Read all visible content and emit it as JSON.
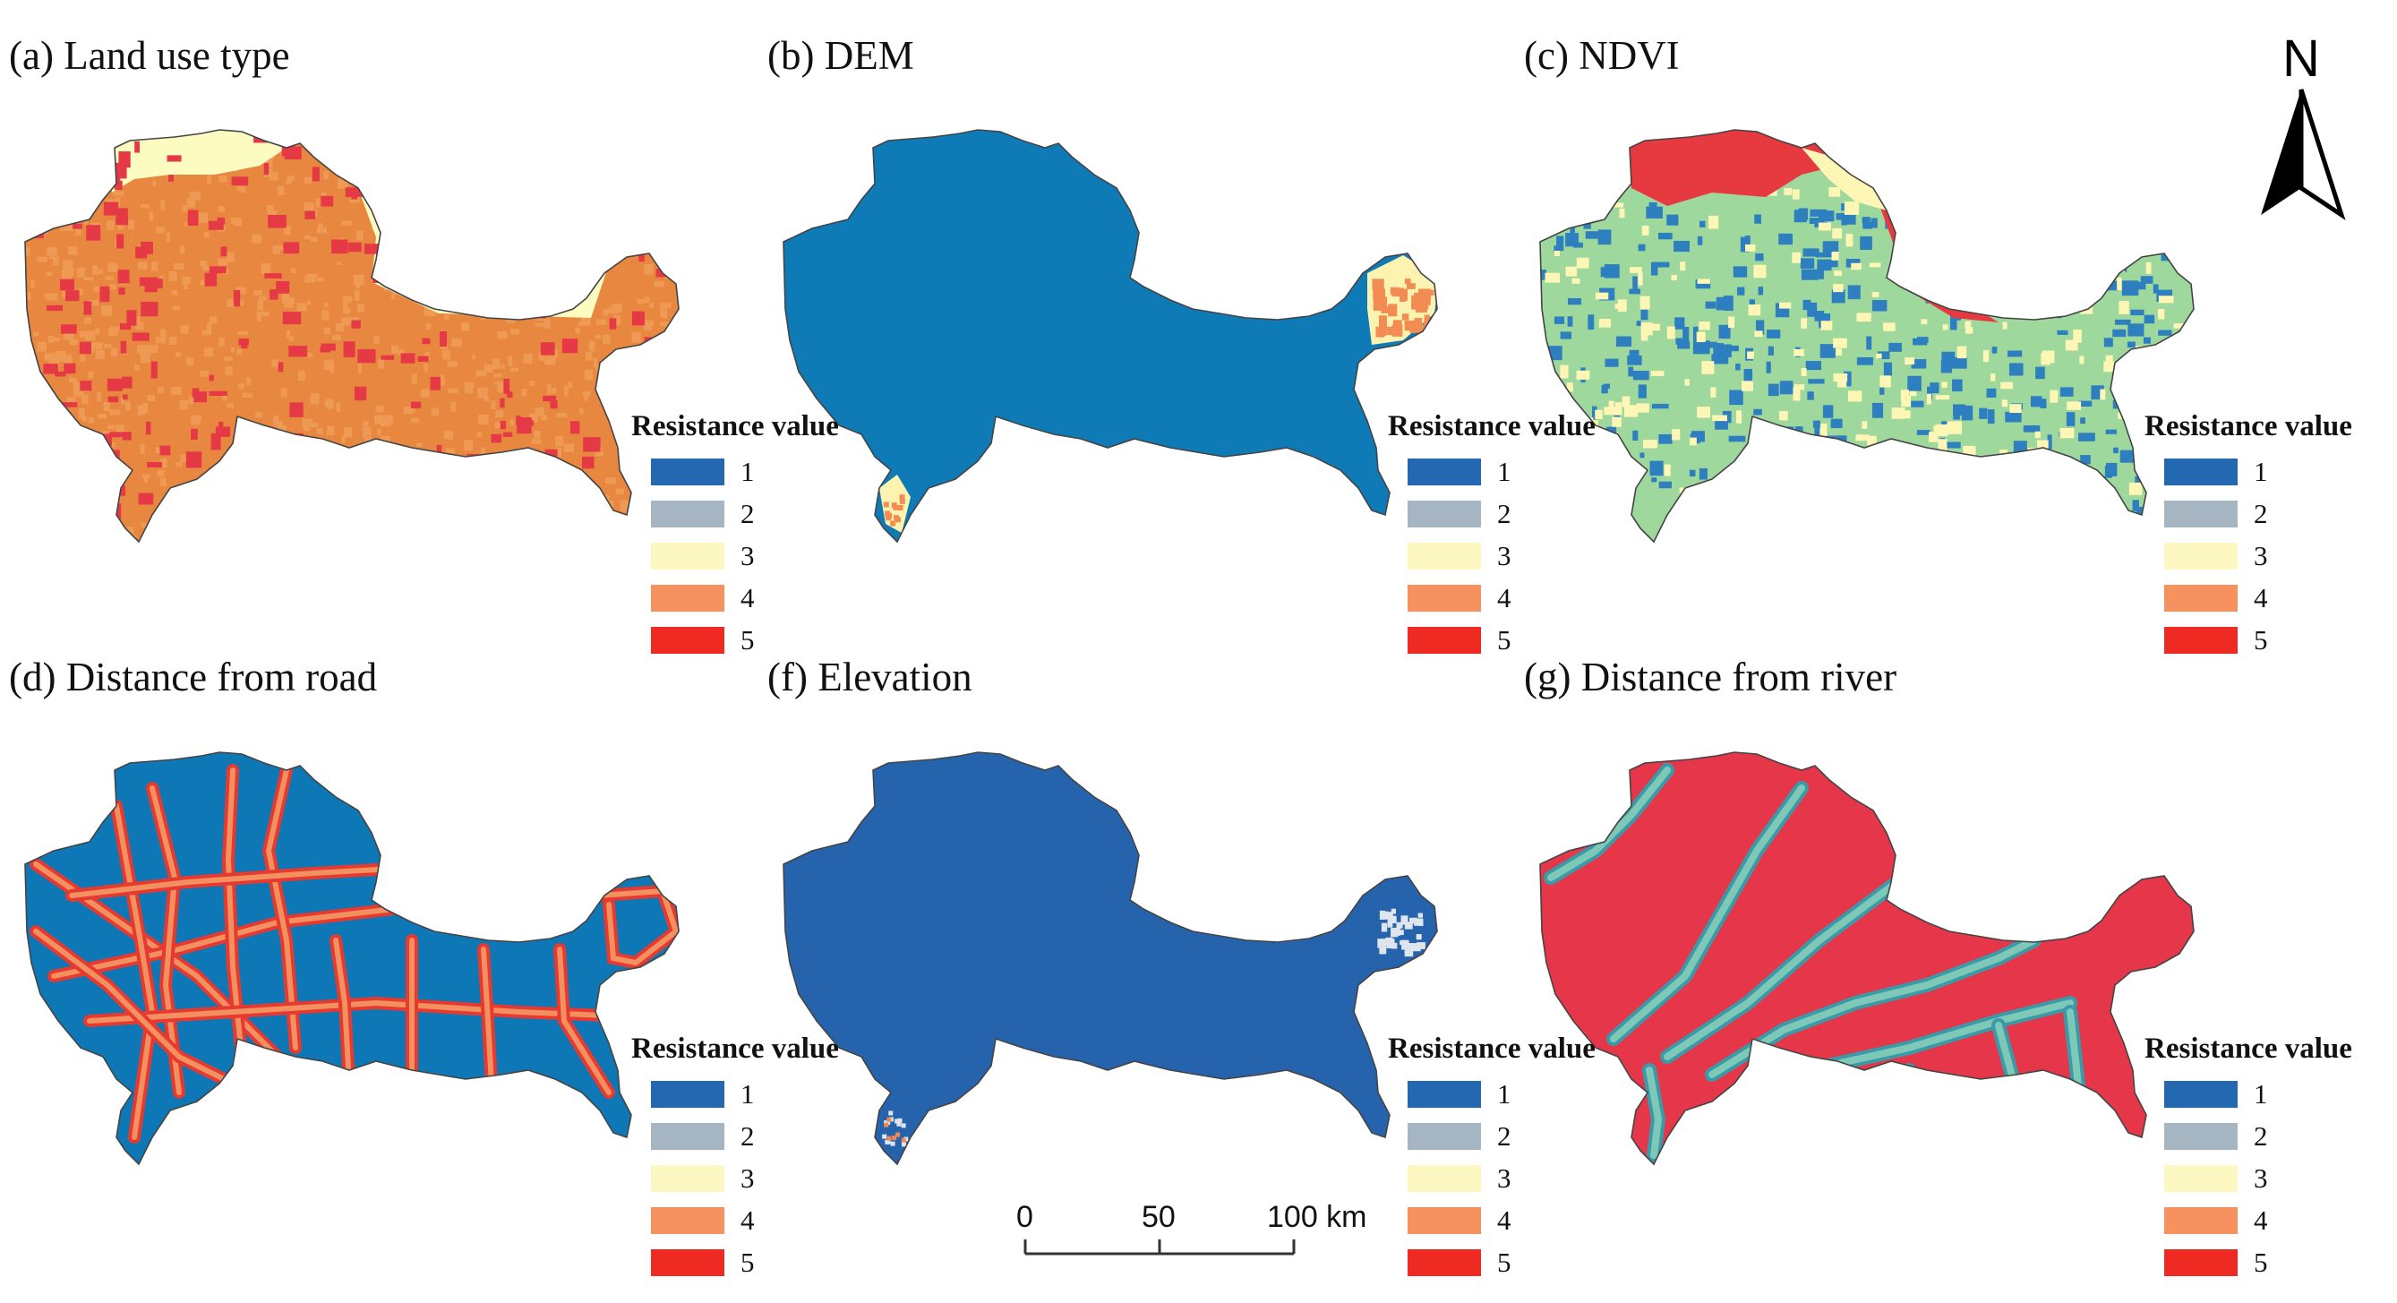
{
  "panels": [
    {
      "id": "a",
      "title": "(a) Land use type",
      "base": "#E8873F",
      "speckle": "#EE9A55",
      "overlay": "#FDFCC0",
      "hot": "#E63946",
      "pattern": "landuse"
    },
    {
      "id": "b",
      "title": "(b) DEM",
      "base": "#0E7AB6",
      "speckle": "#1780BA",
      "overlay": "#FDF3B0",
      "hot": "#F28C52",
      "pattern": "dem"
    },
    {
      "id": "c",
      "title": "(c) NDVI",
      "base": "#9ED89C",
      "speckle": "#2D7FC0",
      "overlay": "#FDF6B5",
      "hot": "#E63940",
      "pattern": "ndvi"
    },
    {
      "id": "d",
      "title": "(d) Distance from road",
      "base": "#0D78B5",
      "speckle": "#F29060",
      "overlay": "#F29060",
      "hot": "#E63930",
      "pattern": "road"
    },
    {
      "id": "f",
      "title": "(f) Elevation",
      "base": "#2563AD",
      "speckle": "#2B69B0",
      "overlay": "#DFE5EC",
      "hot": "#F08A50",
      "pattern": "elev"
    },
    {
      "id": "g",
      "title": "(g) Distance from river",
      "base": "#E5364A",
      "speckle": "#E5364A",
      "overlay": "#7EC8B8",
      "hot": "#3B9AA8",
      "pattern": "river"
    }
  ],
  "legend": {
    "title": "Resistance value",
    "items": [
      {
        "label": "1",
        "color": "#2568B2"
      },
      {
        "label": "2",
        "color": "#A6B5C2"
      },
      {
        "label": "3",
        "color": "#FDF8C2"
      },
      {
        "label": "4",
        "color": "#F59260"
      },
      {
        "label": "5",
        "color": "#EE2A23"
      }
    ]
  },
  "north_label": "N",
  "scale": {
    "labels": [
      "0",
      "50",
      "100 km"
    ]
  },
  "colors": {
    "outline": "#444444",
    "white": "#ffffff"
  }
}
